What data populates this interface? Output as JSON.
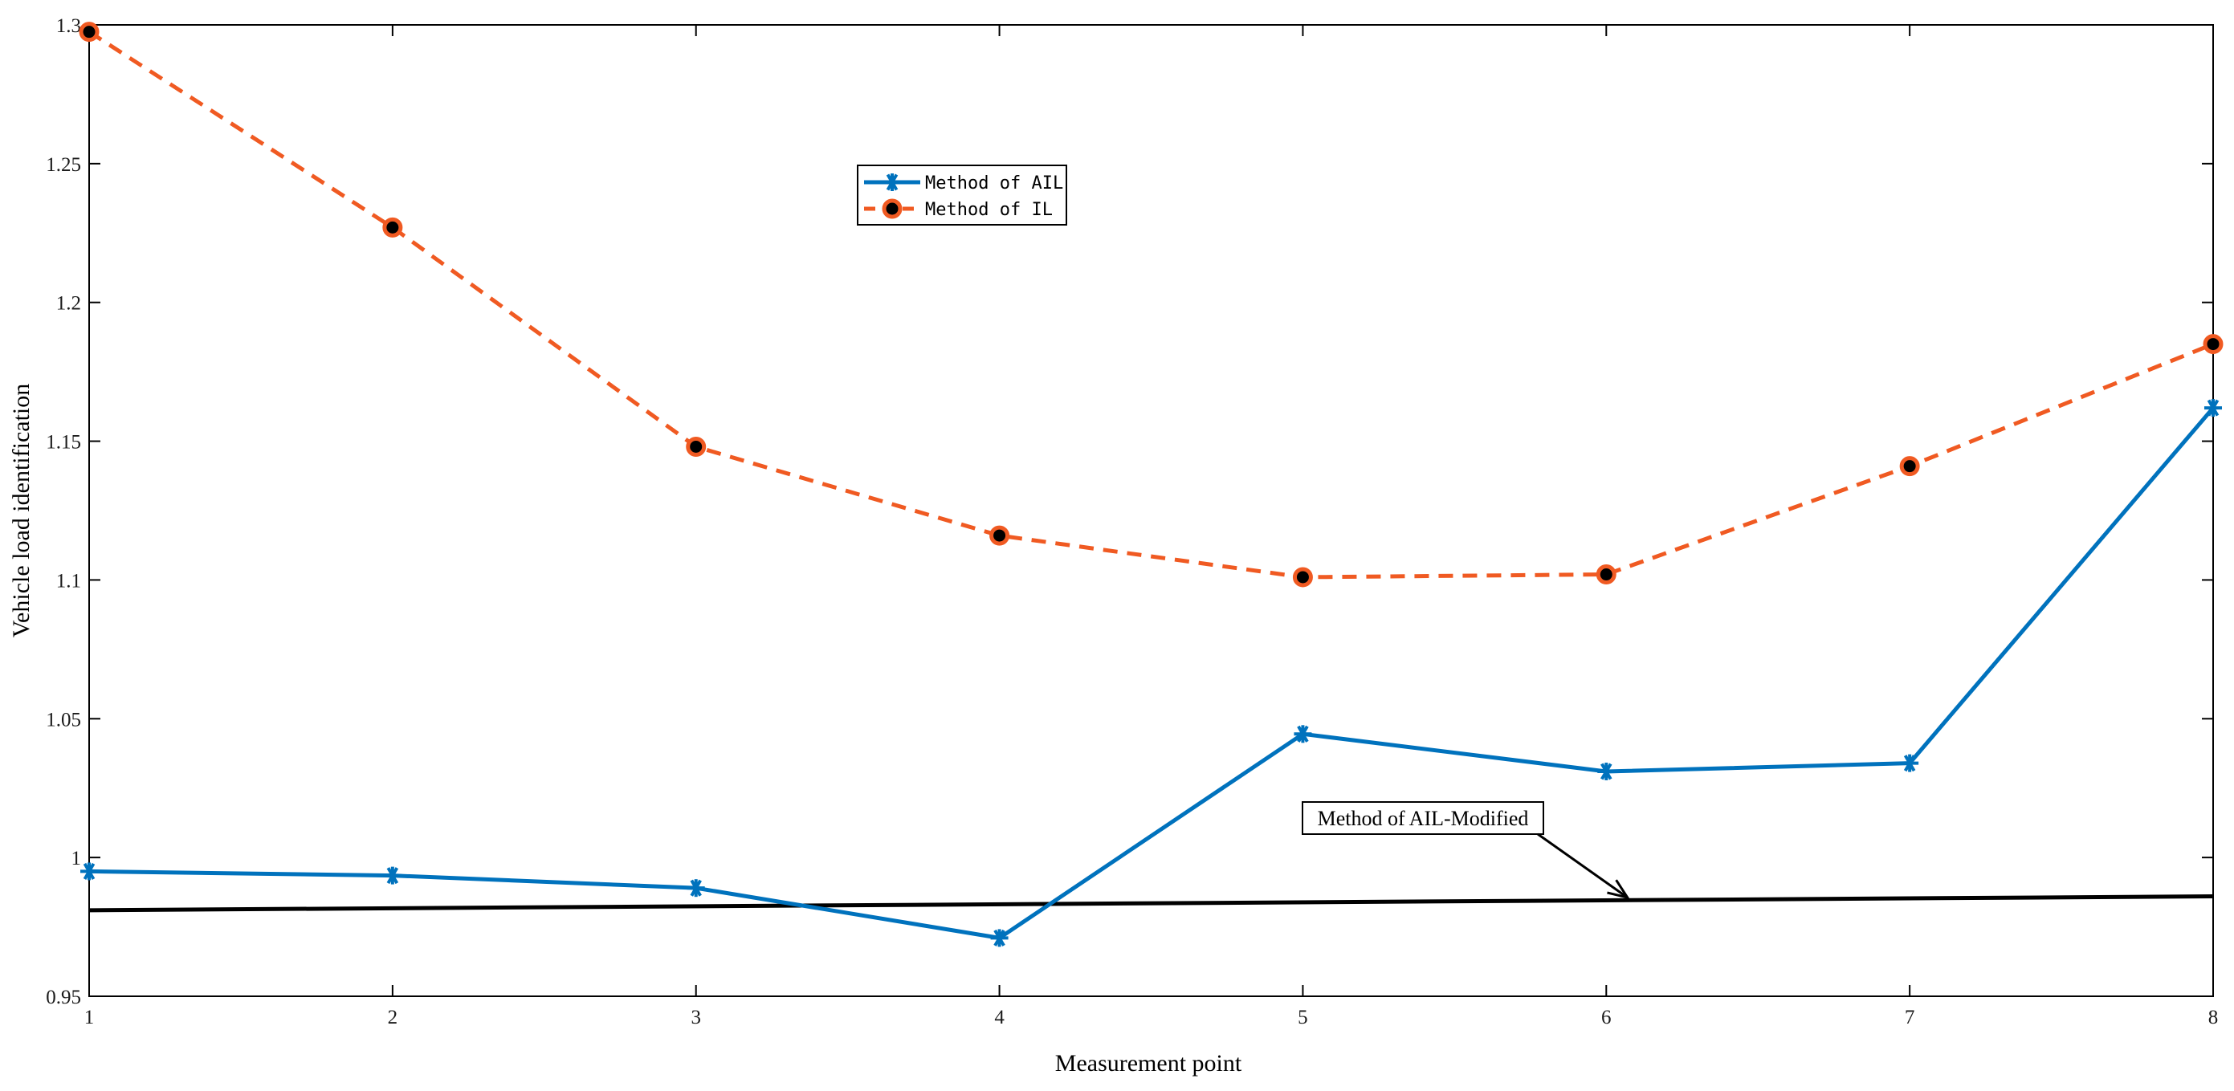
{
  "chart_data": {
    "type": "line",
    "title": "",
    "xlabel": "Measurement point",
    "ylabel": "Vehicle load identification",
    "xlim": [
      1,
      8
    ],
    "ylim": [
      0.95,
      1.3
    ],
    "x_ticks": [
      "1",
      "2",
      "3",
      "4",
      "5",
      "6",
      "7",
      "8"
    ],
    "y_ticks": [
      "0.95",
      "1",
      "1.05",
      "1.1",
      "1.15",
      "1.2",
      "1.25",
      "1.3"
    ],
    "x": [
      1,
      2,
      3,
      4,
      5,
      6,
      7,
      8
    ],
    "grid": false,
    "legend_position": "upper-center",
    "series": [
      {
        "name": "Method of AIL",
        "values": [
          0.995,
          0.9935,
          0.989,
          0.971,
          1.0445,
          1.031,
          1.034,
          1.162
        ],
        "color": "#0072BD",
        "line_style": "solid",
        "marker": "asterisk"
      },
      {
        "name": "Method of IL",
        "values": [
          1.2975,
          1.227,
          1.148,
          1.116,
          1.101,
          1.102,
          1.141,
          1.185
        ],
        "color": "#F05A22",
        "line_style": "dashed",
        "marker": "filled-circle"
      }
    ],
    "reference_line": {
      "x": [
        1,
        8
      ],
      "values": [
        0.981,
        0.986
      ],
      "color": "#000000",
      "label": "Method of AIL-Modified"
    },
    "annotation": {
      "text": "Method of AIL-Modified",
      "arrow_target": {
        "x": 6.07,
        "y": 0.985
      }
    }
  }
}
